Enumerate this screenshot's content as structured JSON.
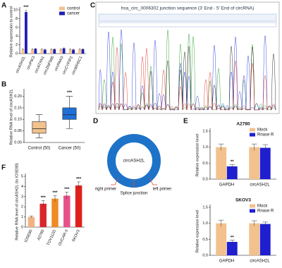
{
  "chart_data": [
    {
      "type": "bar",
      "label": "A",
      "categories": [
        "circASH2L",
        "circPIK3",
        "circATXN1",
        "circZNF566",
        "circPAN3",
        "circCYFIP2",
        "circWHSC1"
      ],
      "series": [
        {
          "name": "control",
          "color": "#f2c18d",
          "values": [
            1,
            1,
            1,
            1,
            1,
            1,
            1
          ],
          "errors": [
            0.1,
            0.1,
            0.1,
            0.1,
            0.1,
            0.1,
            0.1
          ]
        },
        {
          "name": "cancer",
          "color": "#1f1fb4",
          "values": [
            9.5,
            1.1,
            0.9,
            1.0,
            1.2,
            0.9,
            1.0
          ],
          "errors": [
            0.4,
            0.1,
            0.1,
            0.1,
            0.1,
            0.1,
            0.1
          ]
        }
      ],
      "ylabel": "Relative expression to control",
      "ylim": [
        0,
        10
      ],
      "yticks": [
        0,
        2,
        4,
        6,
        8,
        10
      ],
      "annotations": [
        {
          "text": "***",
          "category": "circASH2L",
          "series": "cancer"
        }
      ],
      "legend": "upper-right"
    },
    {
      "type": "box",
      "label": "B",
      "categories": [
        "Control (50)",
        "Cancer (50)"
      ],
      "colors": [
        "#f2c18d",
        "#1f6fd8"
      ],
      "boxes": [
        {
          "min": 0.02,
          "q1": 0.04,
          "median": 0.06,
          "q3": 0.09,
          "max": 0.12
        },
        {
          "min": 0.06,
          "q1": 0.1,
          "median": 0.12,
          "q3": 0.15,
          "max": 0.2
        }
      ],
      "ylabel": "Relative RNA level of circASH2L",
      "ylim": [
        0,
        0.22
      ],
      "yticks": [
        {
          "value": 0,
          "label": "0.00"
        },
        {
          "value": 0.05,
          "label": "0.05"
        },
        {
          "value": 0.1,
          "label": "0.10"
        },
        {
          "value": 0.15,
          "label": "0.15"
        },
        {
          "value": 0.2,
          "label": "0.20"
        }
      ],
      "annotations": [
        {
          "text": "***",
          "category": "Cancer (50)"
        }
      ]
    },
    {
      "type": "chromatogram",
      "label": "C",
      "title": "hsa_circ_0006302 junction sequence (3' End - 5' End of circRNA)"
    },
    {
      "type": "diagram",
      "label": "D",
      "center": "circASH2L",
      "labels": [
        "right primer",
        "left primer",
        "Splice junction"
      ]
    },
    {
      "type": "bar",
      "label": "E",
      "title": "A2780",
      "categories": [
        "GAPDH",
        "circASH2L"
      ],
      "series": [
        {
          "name": "Mock",
          "color": "#f2c18d",
          "values": [
            1.0,
            1.0
          ],
          "errors": [
            0.1,
            0.1
          ]
        },
        {
          "name": "Rnase R",
          "color": "#1f1fd0",
          "values": [
            0.4,
            0.98
          ],
          "errors": [
            0.05,
            0.1
          ]
        }
      ],
      "ylabel": "Relative expression level",
      "ylim": [
        0,
        1.5
      ],
      "yticks": [
        {
          "value": 0,
          "label": "0.0"
        },
        {
          "value": 0.5,
          "label": "0.5"
        },
        {
          "value": 1,
          "label": "1.0"
        },
        {
          "value": 1.5,
          "label": "1.5"
        }
      ],
      "annotations": [
        {
          "text": "**",
          "category": "GAPDH",
          "series": "Rnase R"
        }
      ],
      "legend": "upper-right"
    },
    {
      "type": "bar",
      "title": "SKOV3",
      "categories": [
        "GAPDH",
        "circASH2L"
      ],
      "series": [
        {
          "name": "Mock",
          "color": "#f2c18d",
          "values": [
            1.0,
            1.0
          ],
          "errors": [
            0.1,
            0.08
          ]
        },
        {
          "name": "Rnase R",
          "color": "#1f1fd0",
          "values": [
            0.42,
            0.98
          ],
          "errors": [
            0.05,
            0.06
          ]
        }
      ],
      "ylabel": "Relative expression level",
      "ylim": [
        0,
        1.5
      ],
      "yticks": [
        {
          "value": 0,
          "label": "0.0"
        },
        {
          "value": 0.5,
          "label": "0.5"
        },
        {
          "value": 1,
          "label": "1.0"
        },
        {
          "value": 1.5,
          "label": "1.5"
        }
      ],
      "annotations": [
        {
          "text": "**",
          "category": "GAPDH",
          "series": "Rnase R"
        }
      ],
      "legend": "upper-right"
    },
    {
      "type": "bar",
      "label": "F",
      "categories": [
        "IOSE80",
        "A2780",
        "TOV112D",
        "OVCAR-3",
        "SKOV3"
      ],
      "values": [
        1,
        2.3,
        2.8,
        3.1,
        4.1
      ],
      "errors": [
        0.1,
        0.3,
        0.3,
        0.35,
        0.35
      ],
      "colors": [
        "#f4b183",
        "#d9262c",
        "#f08a24",
        "#e8508a",
        "#e0201c"
      ],
      "ylabel": "Relative RNA level of circASH2L (to IOSE80)",
      "ylim": [
        0,
        5
      ],
      "yticks": [
        0,
        1,
        2,
        3,
        4,
        5
      ],
      "annotations": [
        {
          "text": "***",
          "category": "A2780"
        },
        {
          "text": "***",
          "category": "TOV112D"
        },
        {
          "text": "***",
          "category": "OVCAR-3"
        },
        {
          "text": "***",
          "category": "SKOV3"
        }
      ]
    }
  ]
}
